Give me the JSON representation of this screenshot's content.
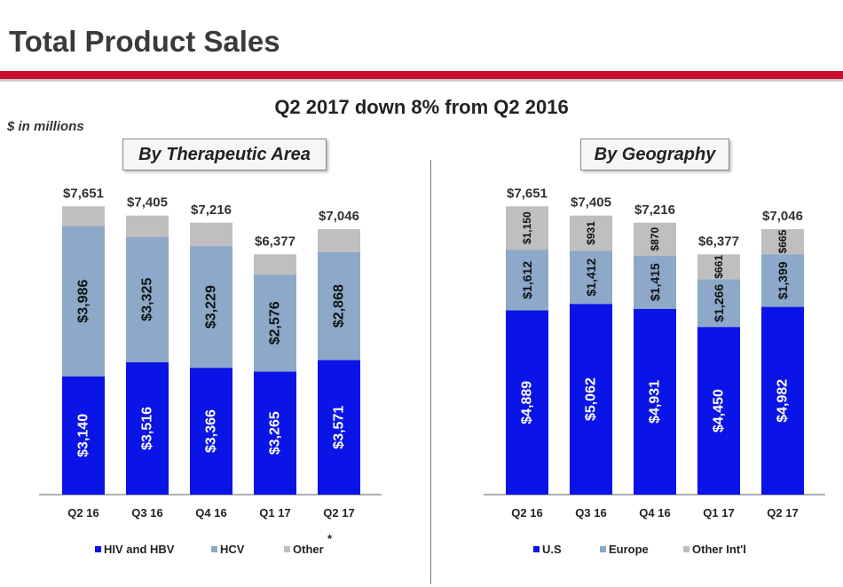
{
  "header": {
    "title": "Total Product Sales",
    "subtitle": "Q2 2017 down 8% from Q2 2016",
    "units": "$ in millions",
    "footnote_marker": "*"
  },
  "colors": {
    "accent": "#c8102e",
    "series1": "#0a14e6",
    "series2": "#8da8c8",
    "series3": "#bfbfbf"
  },
  "chart_data": [
    {
      "type": "bar",
      "stacked": true,
      "title": "By Therapeutic Area",
      "categories": [
        "Q2 16",
        "Q3 16",
        "Q4 16",
        "Q1 17",
        "Q2 17"
      ],
      "series": [
        {
          "name": "HIV and HBV",
          "values": [
            3140,
            3516,
            3366,
            3265,
            3571
          ],
          "labels": [
            "$3,140",
            "$3,516",
            "$3,366",
            "$3,265",
            "$3,571"
          ]
        },
        {
          "name": "HCV",
          "values": [
            3986,
            3325,
            3229,
            2576,
            2868
          ],
          "labels": [
            "$3,986",
            "$3,325",
            "$3,229",
            "$2,576",
            "$2,868"
          ]
        },
        {
          "name": "Other",
          "values": [
            525,
            564,
            621,
            536,
            607
          ],
          "labels": [
            "",
            "",
            "",
            "",
            ""
          ]
        }
      ],
      "totals": [
        7651,
        7405,
        7216,
        6377,
        7046
      ],
      "total_labels": [
        "$7,651",
        "$7,405",
        "$7,216",
        "$6,377",
        "$7,046"
      ],
      "ylim": [
        0,
        8200
      ],
      "legend": "bottom",
      "grid": false
    },
    {
      "type": "bar",
      "stacked": true,
      "title": "By Geography",
      "categories": [
        "Q2 16",
        "Q3 16",
        "Q4 16",
        "Q1 17",
        "Q2 17"
      ],
      "series": [
        {
          "name": "U.S",
          "values": [
            4889,
            5062,
            4931,
            4450,
            4982
          ],
          "labels": [
            "$4,889",
            "$5,062",
            "$4,931",
            "$4,450",
            "$4,982"
          ]
        },
        {
          "name": "Europe",
          "values": [
            1612,
            1412,
            1415,
            1266,
            1399
          ],
          "labels": [
            "$1,612",
            "$1,412",
            "$1,415",
            "$1,266",
            "$1,399"
          ]
        },
        {
          "name": "Other Int'l",
          "values": [
            1150,
            931,
            870,
            661,
            665
          ],
          "labels": [
            "$1,150",
            "$931",
            "$870",
            "$661",
            "$665"
          ]
        }
      ],
      "totals": [
        7651,
        7405,
        7216,
        6377,
        7046
      ],
      "total_labels": [
        "$7,651",
        "$7,405",
        "$7,216",
        "$6,377",
        "$7,046"
      ],
      "ylim": [
        0,
        8200
      ],
      "legend": "bottom",
      "grid": false
    }
  ]
}
